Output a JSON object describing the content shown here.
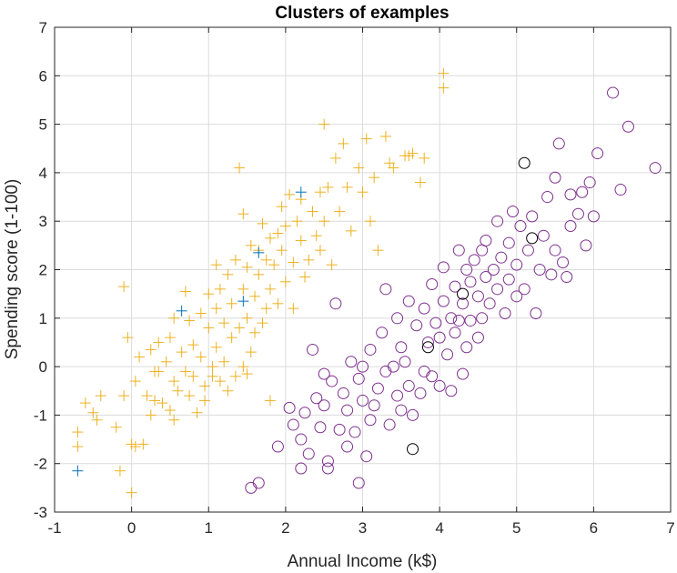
{
  "chart_data": {
    "type": "scatter",
    "title": "Clusters of examples",
    "xlabel": "Annual Income (k$)",
    "ylabel": "Spending score (1-100)",
    "xlim": [
      -1,
      7
    ],
    "ylim": [
      -3,
      7
    ],
    "xticks": [
      "-1",
      "0",
      "1",
      "2",
      "3",
      "4",
      "5",
      "6",
      "7"
    ],
    "yticks": [
      "-3",
      "-2",
      "-1",
      "0",
      "1",
      "2",
      "3",
      "4",
      "5",
      "6",
      "7"
    ],
    "grid": true,
    "legend": "none",
    "colors": {
      "plus": "#EDB120",
      "circle": "#7E2F8E",
      "blue": "#0072BD",
      "black": "#000000"
    },
    "series": [
      {
        "marker": "plus",
        "color": "#EDB120",
        "points": [
          [
            -0.7,
            -1.65
          ],
          [
            -0.7,
            -1.35
          ],
          [
            -0.6,
            -0.75
          ],
          [
            -0.5,
            -0.95
          ],
          [
            -0.45,
            -1.1
          ],
          [
            -0.4,
            -0.6
          ],
          [
            -0.2,
            -1.25
          ],
          [
            -0.15,
            -2.15
          ],
          [
            -0.1,
            -0.6
          ],
          [
            -0.1,
            1.65
          ],
          [
            0.0,
            -1.6
          ],
          [
            0.0,
            -2.6
          ],
          [
            -0.05,
            0.6
          ],
          [
            0.05,
            -0.3
          ],
          [
            0.05,
            -1.65
          ],
          [
            0.1,
            0.2
          ],
          [
            0.15,
            -1.6
          ],
          [
            0.2,
            -0.6
          ],
          [
            0.25,
            0.35
          ],
          [
            0.3,
            -0.1
          ],
          [
            0.3,
            -0.7
          ],
          [
            0.25,
            -1.0
          ],
          [
            0.35,
            -0.1
          ],
          [
            0.35,
            0.5
          ],
          [
            0.4,
            -0.75
          ],
          [
            0.45,
            0.1
          ],
          [
            0.5,
            0.6
          ],
          [
            0.5,
            -0.9
          ],
          [
            0.55,
            -0.3
          ],
          [
            0.55,
            1.0
          ],
          [
            0.6,
            -0.5
          ],
          [
            0.55,
            -1.1
          ],
          [
            0.65,
            0.3
          ],
          [
            0.7,
            1.55
          ],
          [
            0.7,
            -0.1
          ],
          [
            0.75,
            0.95
          ],
          [
            0.75,
            -0.6
          ],
          [
            0.8,
            0.45
          ],
          [
            0.8,
            -0.2
          ],
          [
            0.85,
            -0.95
          ],
          [
            0.9,
            0.2
          ],
          [
            0.9,
            1.1
          ],
          [
            0.95,
            -0.4
          ],
          [
            0.95,
            -0.7
          ],
          [
            1.0,
            0.8
          ],
          [
            1.0,
            1.5
          ],
          [
            1.05,
            0.0
          ],
          [
            1.05,
            -0.2
          ],
          [
            1.1,
            1.2
          ],
          [
            1.1,
            0.4
          ],
          [
            1.1,
            2.1
          ],
          [
            1.15,
            1.6
          ],
          [
            1.15,
            -0.3
          ],
          [
            1.2,
            0.9
          ],
          [
            1.2,
            0.1
          ],
          [
            1.25,
            1.9
          ],
          [
            1.25,
            -0.5
          ],
          [
            1.3,
            1.3
          ],
          [
            1.3,
            0.6
          ],
          [
            1.35,
            2.2
          ],
          [
            1.35,
            -0.2
          ],
          [
            1.4,
            0.8
          ],
          [
            1.4,
            4.1
          ],
          [
            1.45,
            3.15
          ],
          [
            1.45,
            1.6
          ],
          [
            1.45,
            0.0
          ],
          [
            1.5,
            2.05
          ],
          [
            1.5,
            1.0
          ],
          [
            1.5,
            -0.15
          ],
          [
            1.55,
            2.5
          ],
          [
            1.55,
            0.3
          ],
          [
            1.6,
            1.45
          ],
          [
            1.6,
            0.7
          ],
          [
            1.65,
            2.4
          ],
          [
            1.65,
            1.9
          ],
          [
            1.7,
            2.95
          ],
          [
            1.7,
            0.9
          ],
          [
            1.75,
            2.2
          ],
          [
            1.75,
            1.2
          ],
          [
            1.8,
            1.6
          ],
          [
            1.8,
            2.65
          ],
          [
            1.8,
            -0.7
          ],
          [
            1.85,
            2.1
          ],
          [
            1.9,
            2.75
          ],
          [
            1.9,
            1.3
          ],
          [
            1.95,
            3.3
          ],
          [
            1.95,
            2.4
          ],
          [
            2.0,
            1.75
          ],
          [
            2.0,
            2.9
          ],
          [
            2.05,
            3.55
          ],
          [
            2.1,
            2.15
          ],
          [
            2.1,
            1.2
          ],
          [
            2.15,
            3.0
          ],
          [
            2.2,
            2.6
          ],
          [
            2.2,
            3.45
          ],
          [
            2.25,
            1.85
          ],
          [
            2.3,
            2.2
          ],
          [
            2.35,
            3.2
          ],
          [
            2.4,
            2.7
          ],
          [
            2.45,
            3.6
          ],
          [
            2.45,
            2.4
          ],
          [
            2.5,
            3.0
          ],
          [
            2.5,
            5.0
          ],
          [
            2.55,
            3.7
          ],
          [
            2.6,
            2.1
          ],
          [
            2.65,
            4.3
          ],
          [
            2.7,
            3.2
          ],
          [
            2.75,
            4.6
          ],
          [
            2.8,
            3.7
          ],
          [
            2.85,
            2.8
          ],
          [
            2.95,
            4.1
          ],
          [
            3.0,
            3.6
          ],
          [
            3.05,
            4.7
          ],
          [
            3.1,
            3.0
          ],
          [
            3.15,
            3.9
          ],
          [
            3.2,
            2.4
          ],
          [
            3.3,
            4.75
          ],
          [
            3.35,
            4.2
          ],
          [
            3.4,
            4.1
          ],
          [
            3.55,
            4.35
          ],
          [
            3.65,
            4.4
          ],
          [
            3.75,
            3.8
          ],
          [
            3.8,
            4.3
          ],
          [
            4.05,
            6.05
          ],
          [
            4.05,
            5.75
          ],
          [
            3.6,
            4.35
          ]
        ]
      },
      {
        "marker": "circle",
        "color": "#7E2F8E",
        "points": [
          [
            1.55,
            -2.5
          ],
          [
            1.65,
            -2.4
          ],
          [
            1.9,
            -1.65
          ],
          [
            2.05,
            -0.85
          ],
          [
            2.1,
            -1.2
          ],
          [
            2.2,
            -2.1
          ],
          [
            2.2,
            -1.5
          ],
          [
            2.25,
            -0.95
          ],
          [
            2.3,
            -1.8
          ],
          [
            2.35,
            0.35
          ],
          [
            2.4,
            -0.65
          ],
          [
            2.45,
            -1.25
          ],
          [
            2.5,
            -0.15
          ],
          [
            2.5,
            -0.8
          ],
          [
            2.55,
            -2.1
          ],
          [
            2.55,
            -1.95
          ],
          [
            2.6,
            -0.3
          ],
          [
            2.65,
            1.3
          ],
          [
            2.7,
            -1.3
          ],
          [
            2.75,
            -0.55
          ],
          [
            2.8,
            -1.65
          ],
          [
            2.8,
            -0.9
          ],
          [
            2.85,
            0.1
          ],
          [
            2.9,
            -1.35
          ],
          [
            2.95,
            -2.4
          ],
          [
            2.95,
            -0.25
          ],
          [
            3.0,
            -0.7
          ],
          [
            3.0,
            0.0
          ],
          [
            3.05,
            -1.85
          ],
          [
            3.1,
            -1.1
          ],
          [
            3.1,
            0.35
          ],
          [
            3.15,
            -0.8
          ],
          [
            3.2,
            -0.45
          ],
          [
            3.25,
            0.7
          ],
          [
            3.3,
            -0.1
          ],
          [
            3.3,
            1.6
          ],
          [
            3.35,
            -1.2
          ],
          [
            3.4,
            0.0
          ],
          [
            3.45,
            1.0
          ],
          [
            3.45,
            -0.6
          ],
          [
            3.5,
            0.4
          ],
          [
            3.5,
            -0.9
          ],
          [
            3.55,
            0.1
          ],
          [
            3.6,
            1.35
          ],
          [
            3.6,
            -0.4
          ],
          [
            3.65,
            -1.0
          ],
          [
            3.7,
            0.85
          ],
          [
            3.75,
            -0.55
          ],
          [
            3.8,
            1.2
          ],
          [
            3.8,
            -0.1
          ],
          [
            3.85,
            0.5
          ],
          [
            3.9,
            1.7
          ],
          [
            3.9,
            -0.2
          ],
          [
            3.95,
            0.9
          ],
          [
            4.0,
            0.6
          ],
          [
            4.0,
            -0.4
          ],
          [
            4.05,
            1.35
          ],
          [
            4.05,
            2.05
          ],
          [
            4.1,
            0.25
          ],
          [
            4.15,
            1.0
          ],
          [
            4.15,
            -0.5
          ],
          [
            4.2,
            1.65
          ],
          [
            4.2,
            0.7
          ],
          [
            4.25,
            0.95
          ],
          [
            4.25,
            2.4
          ],
          [
            4.3,
            1.3
          ],
          [
            4.3,
            -0.15
          ],
          [
            4.35,
            2.0
          ],
          [
            4.35,
            0.4
          ],
          [
            4.4,
            1.75
          ],
          [
            4.4,
            0.95
          ],
          [
            4.45,
            2.2
          ],
          [
            4.5,
            1.45
          ],
          [
            4.5,
            0.6
          ],
          [
            4.55,
            2.4
          ],
          [
            4.55,
            1.0
          ],
          [
            4.6,
            1.85
          ],
          [
            4.6,
            2.6
          ],
          [
            4.65,
            1.3
          ],
          [
            4.7,
            2.0
          ],
          [
            4.75,
            1.6
          ],
          [
            4.75,
            3.0
          ],
          [
            4.8,
            2.25
          ],
          [
            4.85,
            1.1
          ],
          [
            4.9,
            1.8
          ],
          [
            4.9,
            2.55
          ],
          [
            4.95,
            3.2
          ],
          [
            5.0,
            1.45
          ],
          [
            5.0,
            2.1
          ],
          [
            5.05,
            2.9
          ],
          [
            5.1,
            1.6
          ],
          [
            5.15,
            2.4
          ],
          [
            5.2,
            3.1
          ],
          [
            5.25,
            1.1
          ],
          [
            5.3,
            2.0
          ],
          [
            5.35,
            2.7
          ],
          [
            5.4,
            3.5
          ],
          [
            5.45,
            1.9
          ],
          [
            5.5,
            2.4
          ],
          [
            5.5,
            3.9
          ],
          [
            5.55,
            4.6
          ],
          [
            5.6,
            2.15
          ],
          [
            5.65,
            1.85
          ],
          [
            5.7,
            2.9
          ],
          [
            5.7,
            3.55
          ],
          [
            5.8,
            3.15
          ],
          [
            5.85,
            3.6
          ],
          [
            5.9,
            2.5
          ],
          [
            5.95,
            3.8
          ],
          [
            6.0,
            3.1
          ],
          [
            6.05,
            4.4
          ],
          [
            6.25,
            5.65
          ],
          [
            6.35,
            3.65
          ],
          [
            6.45,
            4.95
          ],
          [
            6.8,
            4.1
          ]
        ]
      },
      {
        "marker": "plus",
        "color": "#0072BD",
        "points": [
          [
            -0.7,
            -2.15
          ],
          [
            0.65,
            1.15
          ],
          [
            1.45,
            1.35
          ],
          [
            1.65,
            2.35
          ],
          [
            2.2,
            3.6
          ]
        ]
      },
      {
        "marker": "circle",
        "color": "#000000",
        "points": [
          [
            3.65,
            -1.7
          ],
          [
            3.85,
            0.4
          ],
          [
            4.3,
            1.5
          ],
          [
            5.1,
            4.2
          ],
          [
            5.2,
            2.65
          ]
        ]
      }
    ]
  }
}
